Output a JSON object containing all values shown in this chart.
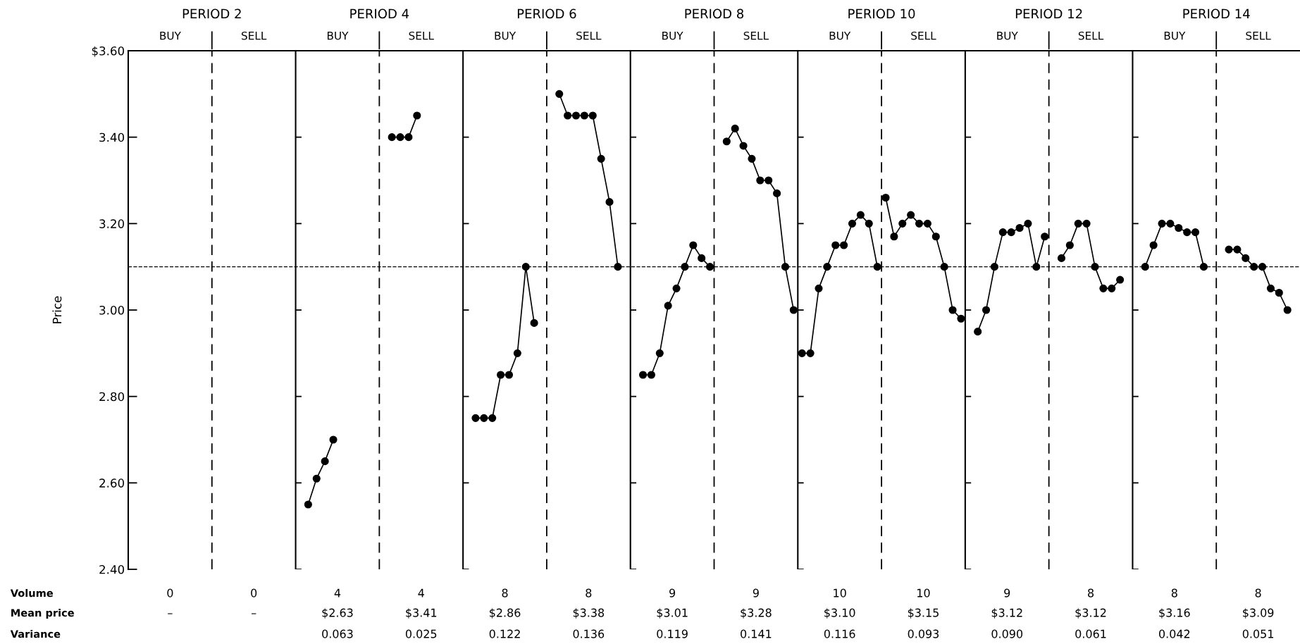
{
  "chart_data": {
    "type": "line",
    "ylabel": "Price",
    "categories": [
      null,
      null,
      null,
      null,
      null,
      null,
      null,
      null,
      null,
      null,
      null,
      null,
      null,
      null,
      null,
      null,
      null,
      null,
      null,
      null,
      null,
      null,
      null,
      null,
      null,
      null,
      null,
      null,
      null,
      null,
      null,
      null,
      null,
      null,
      null,
      null,
      null,
      null,
      null,
      null,
      null,
      null,
      null,
      null,
      null,
      null,
      null,
      null,
      null,
      null,
      null,
      null,
      null,
      null,
      null,
      null,
      null,
      null,
      null,
      null,
      null,
      null,
      null,
      null,
      null,
      null,
      null,
      null,
      null,
      null,
      null,
      null,
      null,
      null,
      null,
      null,
      null,
      null,
      null,
      null,
      null,
      null,
      null,
      null,
      null,
      null,
      null,
      null,
      null,
      null,
      null,
      null,
      null,
      null,
      null,
      null,
      null,
      null,
      null,
      null,
      null,
      null,
      null,
      null,
      null,
      null,
      null,
      null,
      null,
      null,
      null,
      null,
      null,
      null,
      null,
      null,
      null,
      null,
      null,
      null,
      null,
      null,
      null,
      null,
      null,
      null,
      null,
      null,
      null,
      null,
      null,
      null,
      null,
      null,
      null,
      null,
      null,
      null,
      null,
      null
    ],
    "ylim": [
      2.4,
      3.6
    ],
    "yticks": [
      {
        "value": 2.4,
        "label": "2.40"
      },
      {
        "value": 2.6,
        "label": "2.60"
      },
      {
        "value": 2.8,
        "label": "2.80"
      },
      {
        "value": 3.0,
        "label": "3.00"
      },
      {
        "value": 3.2,
        "label": "3.20"
      },
      {
        "value": 3.4,
        "label": "3.40"
      },
      {
        "value": 3.6,
        "label": "$3.60"
      }
    ],
    "tick_labels": "y",
    "marker": "circle",
    "line_style": "solid",
    "grid": false,
    "legend": false,
    "ref_lines": [
      {
        "axis": "y",
        "value": 3.1,
        "line_style": "dashed",
        "color": "#000000"
      }
    ],
    "series": [
      {
        "color": "#000000",
        "values": [
          null,
          null,
          null,
          null,
          null,
          null,
          null,
          null,
          null,
          null,
          null,
          null,
          null,
          null,
          null,
          null,
          null,
          null,
          null,
          null,
          null,
          2.55,
          2.61,
          2.65,
          2.7,
          null,
          null,
          null,
          null,
          null,
          null,
          null,
          null,
          null,
          null,
          null,
          null,
          null,
          null,
          null,
          null,
          null,
          null,
          null,
          null,
          null,
          null,
          null,
          null,
          null,
          null,
          null,
          null,
          null,
          null,
          null,
          null,
          null,
          null,
          null,
          null,
          null,
          null,
          null,
          null,
          null,
          null,
          null,
          null,
          null,
          null,
          null,
          null,
          null,
          null,
          null,
          null,
          null,
          null,
          null,
          null,
          null,
          null,
          null,
          null,
          null,
          null,
          null,
          null,
          null,
          null,
          null,
          null,
          null,
          null,
          null,
          null,
          null,
          null,
          null,
          null,
          null,
          null,
          null,
          null,
          null,
          null,
          null,
          null,
          null,
          null,
          null,
          null,
          null,
          null,
          null,
          null,
          null,
          null,
          null,
          null,
          null,
          null,
          null,
          null,
          null,
          null,
          null,
          null,
          null,
          null,
          null,
          null,
          null,
          null,
          null,
          null,
          null,
          null,
          null
        ]
      },
      {
        "color": "#000000",
        "values": [
          null,
          null,
          null,
          null,
          null,
          null,
          null,
          null,
          null,
          null,
          null,
          null,
          null,
          null,
          null,
          null,
          null,
          null,
          null,
          null,
          null,
          null,
          null,
          null,
          null,
          null,
          null,
          null,
          null,
          null,
          null,
          3.4,
          3.4,
          3.4,
          3.45,
          null,
          null,
          null,
          null,
          null,
          null,
          null,
          null,
          null,
          null,
          null,
          null,
          null,
          null,
          null,
          null,
          null,
          null,
          null,
          null,
          null,
          null,
          null,
          null,
          null,
          null,
          null,
          null,
          null,
          null,
          null,
          null,
          null,
          null,
          null,
          null,
          null,
          null,
          null,
          null,
          null,
          null,
          null,
          null,
          null,
          null,
          null,
          null,
          null,
          null,
          null,
          null,
          null,
          null,
          null,
          null,
          null,
          null,
          null,
          null,
          null,
          null,
          null,
          null,
          null,
          null,
          null,
          null,
          null,
          null,
          null,
          null,
          null,
          null,
          null,
          null,
          null,
          null,
          null,
          null,
          null,
          null,
          null,
          null,
          null,
          null,
          null,
          null,
          null,
          null,
          null,
          null,
          null,
          null,
          null,
          null,
          null,
          null,
          null,
          null,
          null,
          null,
          null,
          null,
          null
        ]
      },
      {
        "color": "#000000",
        "values": [
          null,
          null,
          null,
          null,
          null,
          null,
          null,
          null,
          null,
          null,
          null,
          null,
          null,
          null,
          null,
          null,
          null,
          null,
          null,
          null,
          null,
          null,
          null,
          null,
          null,
          null,
          null,
          null,
          null,
          null,
          null,
          null,
          null,
          null,
          null,
          null,
          null,
          null,
          null,
          null,
          null,
          2.75,
          2.75,
          2.75,
          2.85,
          2.85,
          2.9,
          3.1,
          2.97,
          null,
          null,
          null,
          null,
          null,
          null,
          null,
          null,
          null,
          null,
          null,
          null,
          null,
          null,
          null,
          null,
          null,
          null,
          null,
          null,
          null,
          null,
          null,
          null,
          null,
          null,
          null,
          null,
          null,
          null,
          null,
          null,
          null,
          null,
          null,
          null,
          null,
          null,
          null,
          null,
          null,
          null,
          null,
          null,
          null,
          null,
          null,
          null,
          null,
          null,
          null,
          null,
          null,
          null,
          null,
          null,
          null,
          null,
          null,
          null,
          null,
          null,
          null,
          null,
          null,
          null,
          null,
          null,
          null,
          null,
          null,
          null,
          null,
          null,
          null,
          null,
          null,
          null,
          null,
          null,
          null,
          null,
          null,
          null,
          null,
          null,
          null,
          null,
          null,
          null,
          null
        ]
      },
      {
        "color": "#000000",
        "values": [
          null,
          null,
          null,
          null,
          null,
          null,
          null,
          null,
          null,
          null,
          null,
          null,
          null,
          null,
          null,
          null,
          null,
          null,
          null,
          null,
          null,
          null,
          null,
          null,
          null,
          null,
          null,
          null,
          null,
          null,
          null,
          null,
          null,
          null,
          null,
          null,
          null,
          null,
          null,
          null,
          null,
          null,
          null,
          null,
          null,
          null,
          null,
          null,
          null,
          null,
          null,
          3.5,
          3.45,
          3.45,
          3.45,
          3.45,
          3.35,
          3.25,
          3.1,
          null,
          null,
          null,
          null,
          null,
          null,
          null,
          null,
          null,
          null,
          null,
          null,
          null,
          null,
          null,
          null,
          null,
          null,
          null,
          null,
          null,
          null,
          null,
          null,
          null,
          null,
          null,
          null,
          null,
          null,
          null,
          null,
          null,
          null,
          null,
          null,
          null,
          null,
          null,
          null,
          null,
          null,
          null,
          null,
          null,
          null,
          null,
          null,
          null,
          null,
          null,
          null,
          null,
          null,
          null,
          null,
          null,
          null,
          null,
          null,
          null,
          null,
          null,
          null,
          null,
          null,
          null,
          null,
          null,
          null,
          null,
          null,
          null,
          null,
          null,
          null,
          null,
          null,
          null,
          null,
          null
        ]
      },
      {
        "color": "#000000",
        "values": [
          null,
          null,
          null,
          null,
          null,
          null,
          null,
          null,
          null,
          null,
          null,
          null,
          null,
          null,
          null,
          null,
          null,
          null,
          null,
          null,
          null,
          null,
          null,
          null,
          null,
          null,
          null,
          null,
          null,
          null,
          null,
          null,
          null,
          null,
          null,
          null,
          null,
          null,
          null,
          null,
          null,
          null,
          null,
          null,
          null,
          null,
          null,
          null,
          null,
          null,
          null,
          null,
          null,
          null,
          null,
          null,
          null,
          null,
          null,
          null,
          null,
          2.85,
          2.85,
          2.9,
          3.01,
          3.05,
          3.1,
          3.15,
          3.12,
          3.1,
          null,
          null,
          null,
          null,
          null,
          null,
          null,
          null,
          null,
          null,
          null,
          null,
          null,
          null,
          null,
          null,
          null,
          null,
          null,
          null,
          null,
          null,
          null,
          null,
          null,
          null,
          null,
          null,
          null,
          null,
          null,
          null,
          null,
          null,
          null,
          null,
          null,
          null,
          null,
          null,
          null,
          null,
          null,
          null,
          null,
          null,
          null,
          null,
          null,
          null,
          null,
          null,
          null,
          null,
          null,
          null,
          null,
          null,
          null,
          null,
          null,
          null,
          null,
          null,
          null,
          null,
          null,
          null,
          null,
          null
        ]
      },
      {
        "color": "#000000",
        "values": [
          null,
          null,
          null,
          null,
          null,
          null,
          null,
          null,
          null,
          null,
          null,
          null,
          null,
          null,
          null,
          null,
          null,
          null,
          null,
          null,
          null,
          null,
          null,
          null,
          null,
          null,
          null,
          null,
          null,
          null,
          null,
          null,
          null,
          null,
          null,
          null,
          null,
          null,
          null,
          null,
          null,
          null,
          null,
          null,
          null,
          null,
          null,
          null,
          null,
          null,
          null,
          null,
          null,
          null,
          null,
          null,
          null,
          null,
          null,
          null,
          null,
          null,
          null,
          null,
          null,
          null,
          null,
          null,
          null,
          null,
          null,
          3.39,
          3.42,
          3.38,
          3.35,
          3.3,
          3.3,
          3.27,
          3.1,
          3.0,
          null,
          null,
          null,
          null,
          null,
          null,
          null,
          null,
          null,
          null,
          null,
          null,
          null,
          null,
          null,
          null,
          null,
          null,
          null,
          null,
          null,
          null,
          null,
          null,
          null,
          null,
          null,
          null,
          null,
          null,
          null,
          null,
          null,
          null,
          null,
          null,
          null,
          null,
          null,
          null,
          null,
          null,
          null,
          null,
          null,
          null,
          null,
          null,
          null,
          null,
          null,
          null,
          null,
          null,
          null,
          null,
          null,
          null,
          null,
          null
        ]
      },
      {
        "color": "#000000",
        "values": [
          null,
          null,
          null,
          null,
          null,
          null,
          null,
          null,
          null,
          null,
          null,
          null,
          null,
          null,
          null,
          null,
          null,
          null,
          null,
          null,
          null,
          null,
          null,
          null,
          null,
          null,
          null,
          null,
          null,
          null,
          null,
          null,
          null,
          null,
          null,
          null,
          null,
          null,
          null,
          null,
          null,
          null,
          null,
          null,
          null,
          null,
          null,
          null,
          null,
          null,
          null,
          null,
          null,
          null,
          null,
          null,
          null,
          null,
          null,
          null,
          null,
          null,
          null,
          null,
          null,
          null,
          null,
          null,
          null,
          null,
          null,
          null,
          null,
          null,
          null,
          null,
          null,
          null,
          null,
          null,
          2.9,
          2.9,
          3.05,
          3.1,
          3.15,
          3.15,
          3.2,
          3.22,
          3.2,
          3.1,
          null,
          null,
          null,
          null,
          null,
          null,
          null,
          null,
          null,
          null,
          null,
          null,
          null,
          null,
          null,
          null,
          null,
          null,
          null,
          null,
          null,
          null,
          null,
          null,
          null,
          null,
          null,
          null,
          null,
          null,
          null,
          null,
          null,
          null,
          null,
          null,
          null,
          null,
          null,
          null,
          null,
          null,
          null,
          null,
          null,
          null,
          null,
          null,
          null,
          null
        ]
      },
      {
        "color": "#000000",
        "values": [
          null,
          null,
          null,
          null,
          null,
          null,
          null,
          null,
          null,
          null,
          null,
          null,
          null,
          null,
          null,
          null,
          null,
          null,
          null,
          null,
          null,
          null,
          null,
          null,
          null,
          null,
          null,
          null,
          null,
          null,
          null,
          null,
          null,
          null,
          null,
          null,
          null,
          null,
          null,
          null,
          null,
          null,
          null,
          null,
          null,
          null,
          null,
          null,
          null,
          null,
          null,
          null,
          null,
          null,
          null,
          null,
          null,
          null,
          null,
          null,
          null,
          null,
          null,
          null,
          null,
          null,
          null,
          null,
          null,
          null,
          null,
          null,
          null,
          null,
          null,
          null,
          null,
          null,
          null,
          null,
          null,
          null,
          null,
          null,
          null,
          null,
          null,
          null,
          null,
          null,
          3.26,
          3.17,
          3.2,
          3.22,
          3.2,
          3.2,
          3.17,
          3.1,
          3.0,
          2.98,
          null,
          null,
          null,
          null,
          null,
          null,
          null,
          null,
          null,
          null,
          null,
          null,
          null,
          null,
          null,
          null,
          null,
          null,
          null,
          null,
          null,
          null,
          null,
          null,
          null,
          null,
          null,
          null,
          null,
          null,
          null,
          null,
          null,
          null,
          null,
          null,
          null,
          null,
          null,
          null
        ]
      },
      {
        "color": "#000000",
        "values": [
          null,
          null,
          null,
          null,
          null,
          null,
          null,
          null,
          null,
          null,
          null,
          null,
          null,
          null,
          null,
          null,
          null,
          null,
          null,
          null,
          null,
          null,
          null,
          null,
          null,
          null,
          null,
          null,
          null,
          null,
          null,
          null,
          null,
          null,
          null,
          null,
          null,
          null,
          null,
          null,
          null,
          null,
          null,
          null,
          null,
          null,
          null,
          null,
          null,
          null,
          null,
          null,
          null,
          null,
          null,
          null,
          null,
          null,
          null,
          null,
          null,
          null,
          null,
          null,
          null,
          null,
          null,
          null,
          null,
          null,
          null,
          null,
          null,
          null,
          null,
          null,
          null,
          null,
          null,
          null,
          null,
          null,
          null,
          null,
          null,
          null,
          null,
          null,
          null,
          null,
          null,
          null,
          null,
          null,
          null,
          null,
          null,
          null,
          null,
          null,
          null,
          2.95,
          3.0,
          3.1,
          3.18,
          3.18,
          3.19,
          3.2,
          3.1,
          3.17,
          null,
          null,
          null,
          null,
          null,
          null,
          null,
          null,
          null,
          null,
          null,
          null,
          null,
          null,
          null,
          null,
          null,
          null,
          null,
          null,
          null,
          null,
          null,
          null,
          null,
          null,
          null,
          null,
          null,
          null
        ]
      },
      {
        "color": "#000000",
        "values": [
          null,
          null,
          null,
          null,
          null,
          null,
          null,
          null,
          null,
          null,
          null,
          null,
          null,
          null,
          null,
          null,
          null,
          null,
          null,
          null,
          null,
          null,
          null,
          null,
          null,
          null,
          null,
          null,
          null,
          null,
          null,
          null,
          null,
          null,
          null,
          null,
          null,
          null,
          null,
          null,
          null,
          null,
          null,
          null,
          null,
          null,
          null,
          null,
          null,
          null,
          null,
          null,
          null,
          null,
          null,
          null,
          null,
          null,
          null,
          null,
          null,
          null,
          null,
          null,
          null,
          null,
          null,
          null,
          null,
          null,
          null,
          null,
          null,
          null,
          null,
          null,
          null,
          null,
          null,
          null,
          null,
          null,
          null,
          null,
          null,
          null,
          null,
          null,
          null,
          null,
          null,
          null,
          null,
          null,
          null,
          null,
          null,
          null,
          null,
          null,
          null,
          null,
          null,
          null,
          null,
          null,
          null,
          null,
          null,
          null,
          null,
          3.12,
          3.15,
          3.2,
          3.2,
          3.1,
          3.05,
          3.05,
          3.07,
          null,
          null,
          null,
          null,
          null,
          null,
          null,
          null,
          null,
          null,
          null,
          null,
          null,
          null,
          null,
          null,
          null,
          null,
          null,
          null,
          null
        ]
      },
      {
        "color": "#000000",
        "values": [
          null,
          null,
          null,
          null,
          null,
          null,
          null,
          null,
          null,
          null,
          null,
          null,
          null,
          null,
          null,
          null,
          null,
          null,
          null,
          null,
          null,
          null,
          null,
          null,
          null,
          null,
          null,
          null,
          null,
          null,
          null,
          null,
          null,
          null,
          null,
          null,
          null,
          null,
          null,
          null,
          null,
          null,
          null,
          null,
          null,
          null,
          null,
          null,
          null,
          null,
          null,
          null,
          null,
          null,
          null,
          null,
          null,
          null,
          null,
          null,
          null,
          null,
          null,
          null,
          null,
          null,
          null,
          null,
          null,
          null,
          null,
          null,
          null,
          null,
          null,
          null,
          null,
          null,
          null,
          null,
          null,
          null,
          null,
          null,
          null,
          null,
          null,
          null,
          null,
          null,
          null,
          null,
          null,
          null,
          null,
          null,
          null,
          null,
          null,
          null,
          null,
          null,
          null,
          null,
          null,
          null,
          null,
          null,
          null,
          null,
          null,
          null,
          null,
          null,
          null,
          null,
          null,
          null,
          null,
          null,
          null,
          3.1,
          3.15,
          3.2,
          3.2,
          3.19,
          3.18,
          3.18,
          3.1,
          null,
          null,
          null,
          null,
          null,
          null,
          null,
          null,
          null,
          null,
          null
        ]
      },
      {
        "color": "#000000",
        "values": [
          null,
          null,
          null,
          null,
          null,
          null,
          null,
          null,
          null,
          null,
          null,
          null,
          null,
          null,
          null,
          null,
          null,
          null,
          null,
          null,
          null,
          null,
          null,
          null,
          null,
          null,
          null,
          null,
          null,
          null,
          null,
          null,
          null,
          null,
          null,
          null,
          null,
          null,
          null,
          null,
          null,
          null,
          null,
          null,
          null,
          null,
          null,
          null,
          null,
          null,
          null,
          null,
          null,
          null,
          null,
          null,
          null,
          null,
          null,
          null,
          null,
          null,
          null,
          null,
          null,
          null,
          null,
          null,
          null,
          null,
          null,
          null,
          null,
          null,
          null,
          null,
          null,
          null,
          null,
          null,
          null,
          null,
          null,
          null,
          null,
          null,
          null,
          null,
          null,
          null,
          null,
          null,
          null,
          null,
          null,
          null,
          null,
          null,
          null,
          null,
          null,
          null,
          null,
          null,
          null,
          null,
          null,
          null,
          null,
          null,
          null,
          null,
          null,
          null,
          null,
          null,
          null,
          null,
          null,
          null,
          null,
          null,
          null,
          null,
          null,
          null,
          null,
          null,
          null,
          null,
          null,
          3.14,
          3.14,
          3.12,
          3.1,
          3.1,
          3.05,
          3.04,
          3.0,
          null
        ]
      }
    ],
    "annotations": [
      "PERIOD 2",
      "PERIOD 4",
      "PERIOD 6",
      "PERIOD 8",
      "PERIOD 10",
      "PERIOD 12",
      "PERIOD 14",
      "BUY",
      "SELL",
      "BUY",
      "SELL",
      "BUY",
      "SELL",
      "BUY",
      "SELL",
      "BUY",
      "SELL",
      "BUY",
      "SELL",
      "BUY",
      "SELL",
      "Volume",
      "0",
      "0",
      "4",
      "4",
      "8",
      "8",
      "9",
      "9",
      "10",
      "10",
      "9",
      "8",
      "8",
      "8",
      "Mean price",
      "–",
      "–",
      "$2.63",
      "$3.41",
      "$2.86",
      "$3.38",
      "$3.01",
      "$3.28",
      "$3.10",
      "$3.15",
      "$3.12",
      "$3.12",
      "$3.16",
      "$3.09",
      "Variance",
      "0.063",
      "0.025",
      "0.122",
      "0.136",
      "0.119",
      "0.141",
      "0.116",
      "0.093",
      "0.090",
      "0.061",
      "0.042",
      "0.051"
    ]
  }
}
